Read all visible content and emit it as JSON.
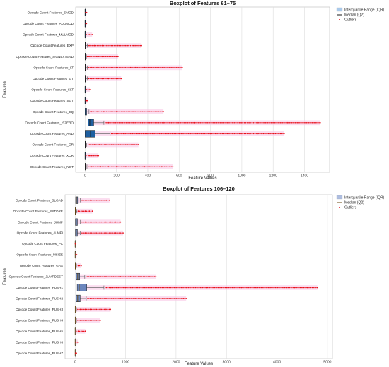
{
  "chart_data": [
    {
      "type": "boxplot",
      "title": "Boxplot of Features 61–75",
      "xlabel": "Feature Values",
      "ylabel": "Features",
      "xlim": [
        -60,
        1560
      ],
      "xticks": [
        0,
        200,
        400,
        600,
        800,
        1000,
        1200,
        1400
      ],
      "grid": true,
      "legend": {
        "placement": "top-right outside",
        "entries": [
          "Interquartile Range (IQR)",
          "Median (Q2)",
          "Outliers"
        ]
      },
      "colors": {
        "box": "#1f5fa0",
        "box_light": "#a9c9ea",
        "median": "#1a1a1a",
        "outlier": "#e8111b",
        "whisker_band": "#f7c3e3"
      },
      "categories": [
        "Opcode Count Features_SMOD",
        "Opcode Count Features_ADDMOD",
        "Opcode Count Features_MULMOD",
        "Opcode Count Features_EXP",
        "Opcode Count Features_SIGNEXTEND",
        "Opcode Count Features_LT",
        "Opcode Count Features_GT",
        "Opcode Count Features_SLT",
        "Opcode Count Features_SGT",
        "Opcode Count Features_EQ",
        "Opcode Count Features_ISZERO",
        "Opcode Count Features_AND",
        "Opcode Count Features_OR",
        "Opcode Count Features_XOR",
        "Opcode Count Features_NOT"
      ],
      "boxes": [
        {
          "q1": 0,
          "median": 0,
          "q3": 1,
          "whisker_hi": 2,
          "outliers": [
            4,
            6,
            10
          ]
        },
        {
          "q1": 0,
          "median": 0,
          "q3": 1,
          "whisker_hi": 2,
          "outliers": [
            5,
            9
          ]
        },
        {
          "q1": 0,
          "median": 0,
          "q3": 2,
          "whisker_hi": 4,
          "outliers": [
            8,
            20,
            45
          ]
        },
        {
          "q1": 0,
          "median": 2,
          "q3": 6,
          "whisker_hi": 15,
          "outliers": [
            30,
            60,
            110,
            160,
            210,
            250,
            280,
            300,
            330,
            360
          ]
        },
        {
          "q1": 0,
          "median": 1,
          "q3": 3,
          "whisker_hi": 8,
          "outliers": [
            15,
            30,
            50,
            80,
            110,
            200,
            210
          ]
        },
        {
          "q1": 0,
          "median": 2,
          "q3": 6,
          "whisker_hi": 15,
          "outliers": [
            40,
            80,
            120,
            160,
            200,
            250,
            290,
            320,
            380,
            560,
            620
          ]
        },
        {
          "q1": 0,
          "median": 2,
          "q3": 6,
          "whisker_hi": 15,
          "outliers": [
            40,
            80,
            110,
            150,
            200,
            230
          ]
        },
        {
          "q1": 0,
          "median": 0,
          "q3": 2,
          "whisker_hi": 4,
          "outliers": [
            10,
            20,
            30
          ]
        },
        {
          "q1": 0,
          "median": 0,
          "q3": 1,
          "whisker_hi": 2,
          "outliers": [
            5,
            10,
            15
          ]
        },
        {
          "q1": 0,
          "median": 5,
          "q3": 10,
          "whisker_hi": 25,
          "outliers": [
            40,
            80,
            120,
            160,
            200,
            300,
            500
          ]
        },
        {
          "q1": 20,
          "median": 30,
          "q3": 55,
          "whisker_hi": 120,
          "outliers": [
            150,
            300,
            500,
            700,
            900,
            1000,
            1050,
            1100,
            1290,
            1500
          ]
        },
        {
          "q1": 0,
          "median": 35,
          "q3": 65,
          "whisker_hi": 160,
          "outliers": [
            200,
            400,
            600,
            800,
            900,
            1000,
            1050,
            1100,
            1200,
            1270
          ]
        },
        {
          "q1": 0,
          "median": 1,
          "q3": 4,
          "whisker_hi": 10,
          "outliers": [
            30,
            60,
            90,
            130,
            310,
            340
          ]
        },
        {
          "q1": 0,
          "median": 0,
          "q3": 1,
          "whisker_hi": 3,
          "outliers": [
            6,
            20,
            85
          ]
        },
        {
          "q1": 0,
          "median": 2,
          "q3": 5,
          "whisker_hi": 12,
          "outliers": [
            40,
            100,
            150,
            200,
            260,
            320,
            380,
            420,
            490,
            560
          ]
        }
      ]
    },
    {
      "type": "boxplot",
      "title": "Boxplot of Features 106–120",
      "xlabel": "Feature Values",
      "ylabel": "Features",
      "xlim": [
        -200,
        5100
      ],
      "xticks": [
        0,
        1000,
        2000,
        3000,
        4000,
        5000
      ],
      "grid": true,
      "legend": {
        "placement": "top-right outside",
        "entries": [
          "Interquartile Range (IQR)",
          "Median (Q2)",
          "Outliers"
        ]
      },
      "colors": {
        "box": "#6b86bd",
        "box_light": "#aebde0",
        "median": "#6b4a10",
        "outlier": "#e8111b",
        "whisker_band": "#f7c3e3"
      },
      "categories": [
        "Opcode Count Features_SLOAD",
        "Opcode Count Features_SSTORE",
        "Opcode Count Features_JUMP",
        "Opcode Count Features_JUMPI",
        "Opcode Count Features_PC",
        "Opcode Count Features_MSIZE",
        "Opcode Count Features_GAS",
        "Opcode Count Features_JUMPDEST",
        "Opcode Count Features_PUSH1",
        "Opcode Count Features_PUSH2",
        "Opcode Count Features_PUSH3",
        "Opcode Count Features_PUSH4",
        "Opcode Count Features_PUSH5",
        "Opcode Count Features_PUSH6",
        "Opcode Count Features_PUSH7"
      ],
      "boxes": [
        {
          "q1": 10,
          "median": 25,
          "q3": 50,
          "whisker_hi": 100,
          "outliers": [
            150,
            300,
            450,
            550,
            620,
            680
          ]
        },
        {
          "q1": 0,
          "median": 5,
          "q3": 15,
          "whisker_hi": 35,
          "outliers": [
            60,
            120,
            200,
            280,
            340
          ]
        },
        {
          "q1": 5,
          "median": 20,
          "q3": 45,
          "whisker_hi": 100,
          "outliers": [
            200,
            400,
            600,
            700,
            800,
            900
          ]
        },
        {
          "q1": 5,
          "median": 20,
          "q3": 45,
          "whisker_hi": 100,
          "outliers": [
            200,
            400,
            600,
            800,
            950
          ]
        },
        {
          "q1": 0,
          "median": 0,
          "q3": 1,
          "whisker_hi": 2,
          "outliers": [
            5,
            8
          ]
        },
        {
          "q1": 0,
          "median": 0,
          "q3": 2,
          "whisker_hi": 4,
          "outliers": [
            15,
            30
          ]
        },
        {
          "q1": 0,
          "median": 5,
          "q3": 10,
          "whisker_hi": 25,
          "outliers": [
            60,
            120
          ]
        },
        {
          "q1": 20,
          "median": 50,
          "q3": 90,
          "whisker_hi": 190,
          "outliers": [
            300,
            600,
            900,
            1100,
            1300,
            1500,
            1600
          ]
        },
        {
          "q1": 40,
          "median": 80,
          "q3": 230,
          "whisker_hi": 570,
          "outliers": [
            700,
            1000,
            1400,
            1800,
            2200,
            2600,
            3000,
            3300,
            3600,
            3900,
            4200,
            4350,
            4600,
            4800
          ]
        },
        {
          "q1": 20,
          "median": 50,
          "q3": 100,
          "whisker_hi": 220,
          "outliers": [
            300,
            600,
            900,
            1200,
            1400,
            1600,
            1800,
            2150,
            2200
          ]
        },
        {
          "q1": 0,
          "median": 2,
          "q3": 10,
          "whisker_hi": 25,
          "outliers": [
            100,
            200,
            300,
            400,
            500,
            600,
            700
          ]
        },
        {
          "q1": 0,
          "median": 2,
          "q3": 10,
          "whisker_hi": 25,
          "outliers": [
            100,
            200,
            300,
            400,
            500
          ]
        },
        {
          "q1": 0,
          "median": 0,
          "q3": 2,
          "whisker_hi": 5,
          "outliers": [
            20,
            60,
            120,
            200
          ]
        },
        {
          "q1": 0,
          "median": 0,
          "q3": 1,
          "whisker_hi": 3,
          "outliers": [
            10,
            20,
            50
          ]
        },
        {
          "q1": 0,
          "median": 0,
          "q3": 1,
          "whisker_hi": 3,
          "outliers": [
            8,
            15,
            25
          ]
        }
      ]
    }
  ]
}
